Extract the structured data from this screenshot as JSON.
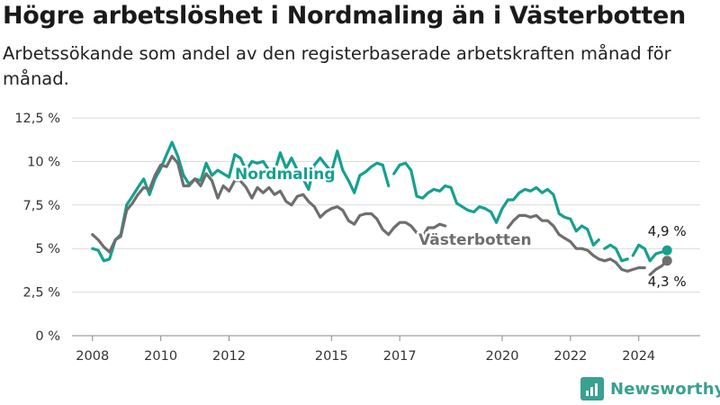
{
  "header": {
    "title": "Högre arbetslöshet i Nordmaling än i Västerbotten",
    "subtitle": "Arbetssökande som andel av den registerbaserade arbetskraften månad för månad."
  },
  "brand": {
    "name": "Newsworthy",
    "icon": "bar-chart-icon",
    "color": "#3aa08f"
  },
  "chart_data": {
    "type": "line",
    "title": "Högre arbetslöshet i Nordmaling än i Västerbotten",
    "subtitle": "Arbetssökande som andel av den registerbaserade arbetskraften månad för månad.",
    "x_ticks": [
      2008,
      2010,
      2012,
      2015,
      2017,
      2020,
      2022,
      2024
    ],
    "y_ticks": [
      "0 %",
      "2,5 %",
      "5 %",
      "7,5 %",
      "10 %",
      "12,5 %"
    ],
    "y_tick_values": [
      0,
      2.5,
      5,
      7.5,
      10,
      12.5
    ],
    "ylim": [
      0,
      12.5
    ],
    "xlim": [
      2007.4,
      2025.8
    ],
    "grid": true,
    "legend": "none",
    "series": [
      {
        "name": "Nordmaling",
        "color": "#16a08f",
        "end_label": "4,9 %",
        "points": [
          [
            2008.0,
            5.0
          ],
          [
            2008.17,
            4.9
          ],
          [
            2008.33,
            4.3
          ],
          [
            2008.5,
            4.4
          ],
          [
            2008.67,
            5.5
          ],
          [
            2008.83,
            5.8
          ],
          [
            2009.0,
            7.5
          ],
          [
            2009.17,
            8.0
          ],
          [
            2009.33,
            8.5
          ],
          [
            2009.5,
            9.0
          ],
          [
            2009.67,
            8.1
          ],
          [
            2009.83,
            9.0
          ],
          [
            2010.0,
            9.6
          ],
          [
            2010.17,
            10.4
          ],
          [
            2010.33,
            11.1
          ],
          [
            2010.5,
            10.3
          ],
          [
            2010.67,
            9.2
          ],
          [
            2010.83,
            8.7
          ],
          [
            2011.0,
            9.0
          ],
          [
            2011.17,
            8.9
          ],
          [
            2011.33,
            9.9
          ],
          [
            2011.5,
            9.2
          ],
          [
            2011.67,
            9.5
          ],
          [
            2011.83,
            9.3
          ],
          [
            2012.0,
            9.1
          ],
          [
            2012.17,
            10.4
          ],
          [
            2012.33,
            10.2
          ],
          [
            2012.5,
            9.5
          ],
          [
            2012.67,
            10.0
          ],
          [
            2012.83,
            9.9
          ],
          [
            2013.0,
            10.0
          ],
          [
            2013.17,
            9.5
          ],
          [
            2013.33,
            9.4
          ],
          [
            2013.5,
            10.5
          ],
          [
            2013.67,
            9.6
          ],
          [
            2013.83,
            10.2
          ],
          [
            2014.0,
            9.5
          ],
          [
            2014.17,
            9.0
          ],
          [
            2014.33,
            8.4
          ],
          [
            2014.5,
            9.8
          ],
          [
            2014.67,
            10.2
          ],
          [
            2014.83,
            9.8
          ],
          [
            2015.0,
            9.4
          ],
          [
            2015.17,
            10.6
          ],
          [
            2015.33,
            9.5
          ],
          [
            2015.5,
            8.9
          ],
          [
            2015.67,
            8.2
          ],
          [
            2015.83,
            9.2
          ],
          [
            2016.0,
            9.4
          ],
          [
            2016.17,
            9.7
          ],
          [
            2016.33,
            9.9
          ],
          [
            2016.5,
            9.8
          ],
          [
            2016.67,
            8.6
          ],
          [
            2016.83,
            9.3
          ],
          [
            2017.0,
            9.8
          ],
          [
            2017.17,
            9.9
          ],
          [
            2017.33,
            9.5
          ],
          [
            2017.5,
            8.0
          ],
          [
            2017.67,
            7.9
          ],
          [
            2017.83,
            8.2
          ],
          [
            2018.0,
            8.4
          ],
          [
            2018.17,
            8.3
          ],
          [
            2018.33,
            8.6
          ],
          [
            2018.5,
            8.5
          ],
          [
            2018.67,
            7.6
          ],
          [
            2018.83,
            7.4
          ],
          [
            2019.0,
            7.2
          ],
          [
            2019.17,
            7.1
          ],
          [
            2019.33,
            7.4
          ],
          [
            2019.5,
            7.3
          ],
          [
            2019.67,
            7.1
          ],
          [
            2019.83,
            6.5
          ],
          [
            2020.0,
            7.3
          ],
          [
            2020.17,
            7.8
          ],
          [
            2020.33,
            7.8
          ],
          [
            2020.5,
            8.2
          ],
          [
            2020.67,
            8.4
          ],
          [
            2020.83,
            8.3
          ],
          [
            2021.0,
            8.5
          ],
          [
            2021.17,
            8.2
          ],
          [
            2021.33,
            8.4
          ],
          [
            2021.5,
            8.1
          ],
          [
            2021.67,
            7.0
          ],
          [
            2021.83,
            6.8
          ],
          [
            2022.0,
            6.7
          ],
          [
            2022.17,
            6.0
          ],
          [
            2022.33,
            6.3
          ],
          [
            2022.5,
            6.1
          ],
          [
            2022.67,
            5.2
          ],
          [
            2022.83,
            5.5
          ],
          [
            2023.0,
            5.0
          ],
          [
            2023.17,
            5.2
          ],
          [
            2023.33,
            5.0
          ],
          [
            2023.5,
            4.3
          ],
          [
            2023.67,
            4.4
          ],
          [
            2023.83,
            4.6
          ],
          [
            2024.0,
            5.2
          ],
          [
            2024.17,
            5.0
          ],
          [
            2024.33,
            4.3
          ],
          [
            2024.5,
            4.7
          ],
          [
            2024.67,
            4.8
          ],
          [
            2024.83,
            4.9
          ]
        ],
        "gaps_after": [
          2016.67,
          2022.83,
          2023.67
        ],
        "inline_label": "Nordmaling"
      },
      {
        "name": "Västerbotten",
        "color": "#6e6e6e",
        "end_label": "4,3 %",
        "points": [
          [
            2008.0,
            5.8
          ],
          [
            2008.17,
            5.5
          ],
          [
            2008.33,
            5.1
          ],
          [
            2008.5,
            4.8
          ],
          [
            2008.67,
            5.5
          ],
          [
            2008.83,
            5.7
          ],
          [
            2009.0,
            7.2
          ],
          [
            2009.17,
            7.6
          ],
          [
            2009.33,
            8.1
          ],
          [
            2009.5,
            8.5
          ],
          [
            2009.67,
            8.4
          ],
          [
            2009.83,
            9.2
          ],
          [
            2010.0,
            9.8
          ],
          [
            2010.17,
            9.7
          ],
          [
            2010.33,
            10.3
          ],
          [
            2010.5,
            9.9
          ],
          [
            2010.67,
            8.6
          ],
          [
            2010.83,
            8.6
          ],
          [
            2011.0,
            9.0
          ],
          [
            2011.17,
            8.6
          ],
          [
            2011.33,
            9.3
          ],
          [
            2011.5,
            8.9
          ],
          [
            2011.67,
            7.9
          ],
          [
            2011.83,
            8.6
          ],
          [
            2012.0,
            8.3
          ],
          [
            2012.17,
            8.9
          ],
          [
            2012.33,
            8.9
          ],
          [
            2012.5,
            8.5
          ],
          [
            2012.67,
            7.9
          ],
          [
            2012.83,
            8.5
          ],
          [
            2013.0,
            8.2
          ],
          [
            2013.17,
            8.5
          ],
          [
            2013.33,
            8.1
          ],
          [
            2013.5,
            8.3
          ],
          [
            2013.67,
            7.7
          ],
          [
            2013.83,
            7.5
          ],
          [
            2014.0,
            8.0
          ],
          [
            2014.17,
            8.1
          ],
          [
            2014.33,
            7.7
          ],
          [
            2014.5,
            7.4
          ],
          [
            2014.67,
            6.8
          ],
          [
            2014.83,
            7.1
          ],
          [
            2015.0,
            7.3
          ],
          [
            2015.17,
            7.4
          ],
          [
            2015.33,
            7.2
          ],
          [
            2015.5,
            6.6
          ],
          [
            2015.67,
            6.4
          ],
          [
            2015.83,
            6.9
          ],
          [
            2016.0,
            7.0
          ],
          [
            2016.17,
            7.0
          ],
          [
            2016.33,
            6.7
          ],
          [
            2016.5,
            6.1
          ],
          [
            2016.67,
            5.8
          ],
          [
            2016.83,
            6.2
          ],
          [
            2017.0,
            6.5
          ],
          [
            2017.17,
            6.5
          ],
          [
            2017.33,
            6.3
          ],
          [
            2017.5,
            5.9
          ],
          [
            2017.67,
            5.7
          ],
          [
            2017.83,
            6.2
          ],
          [
            2018.0,
            6.2
          ],
          [
            2018.17,
            6.4
          ],
          [
            2018.33,
            6.3
          ],
          [
            2020.17,
            6.2
          ],
          [
            2020.33,
            6.6
          ],
          [
            2020.5,
            6.9
          ],
          [
            2020.67,
            6.9
          ],
          [
            2020.83,
            6.8
          ],
          [
            2021.0,
            6.9
          ],
          [
            2021.17,
            6.6
          ],
          [
            2021.33,
            6.6
          ],
          [
            2021.5,
            6.3
          ],
          [
            2021.67,
            5.8
          ],
          [
            2021.83,
            5.6
          ],
          [
            2022.0,
            5.4
          ],
          [
            2022.17,
            5.0
          ],
          [
            2022.33,
            5.0
          ],
          [
            2022.5,
            4.9
          ],
          [
            2022.67,
            4.6
          ],
          [
            2022.83,
            4.4
          ],
          [
            2023.0,
            4.3
          ],
          [
            2023.17,
            4.4
          ],
          [
            2023.33,
            4.2
          ],
          [
            2023.5,
            3.8
          ],
          [
            2023.67,
            3.7
          ],
          [
            2023.83,
            3.8
          ],
          [
            2024.0,
            3.9
          ],
          [
            2024.17,
            3.9
          ],
          [
            2024.33,
            3.5
          ],
          [
            2024.5,
            3.8
          ],
          [
            2024.67,
            4.0
          ],
          [
            2024.83,
            4.3
          ]
        ],
        "gaps_after": [
          2018.33,
          2024.17
        ],
        "inline_label": "Västerbotten"
      }
    ]
  }
}
